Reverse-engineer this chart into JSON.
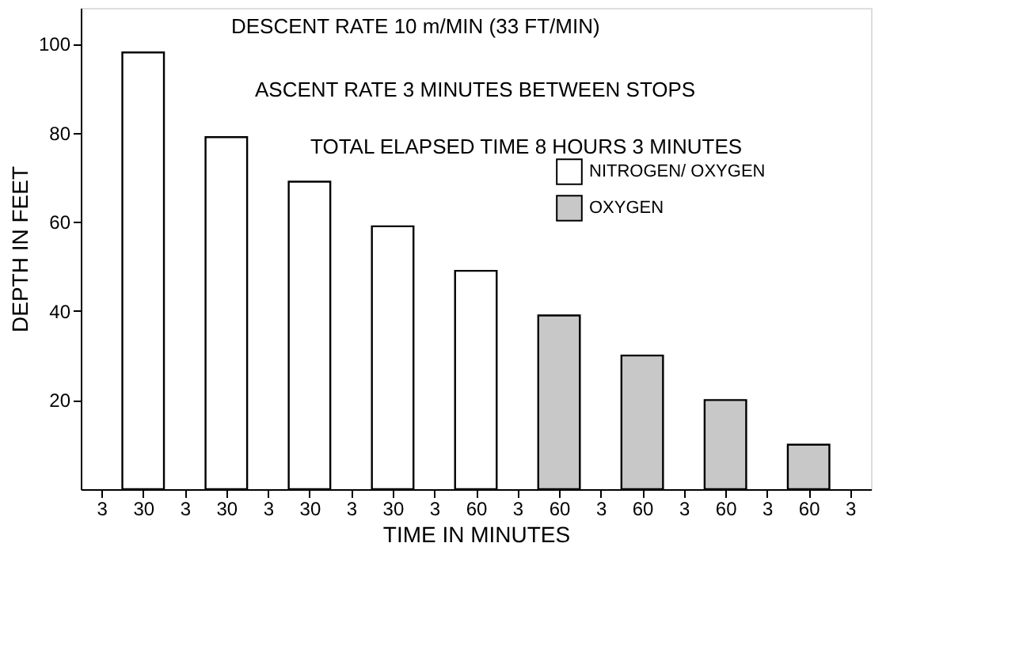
{
  "chart_data": {
    "type": "bar",
    "xlabel": "TIME IN MINUTES",
    "ylabel": "DEPTH IN FEET",
    "categories": [
      "3",
      "30",
      "3",
      "30",
      "3",
      "30",
      "3",
      "30",
      "3",
      "60",
      "3",
      "60",
      "3",
      "60",
      "3",
      "60",
      "3",
      "60",
      "3"
    ],
    "series": [
      {
        "name": "NITROGEN/ OXYGEN",
        "color": "#ffffff",
        "values": [
          null,
          98,
          null,
          79,
          null,
          69,
          null,
          59,
          null,
          49,
          null,
          null,
          null,
          null,
          null,
          null,
          null,
          null,
          null
        ]
      },
      {
        "name": "OXYGEN",
        "color": "#c8c8c8",
        "values": [
          null,
          null,
          null,
          null,
          null,
          null,
          null,
          null,
          null,
          null,
          null,
          39,
          null,
          30,
          null,
          20,
          null,
          10,
          null
        ]
      }
    ],
    "ylim": [
      0,
      108
    ],
    "yticks": [
      20,
      40,
      60,
      80,
      100
    ],
    "grid": false,
    "legend": "top right",
    "annotations": [
      "DESCENT RATE 10 m/MIN (33 FT/MIN)",
      "ASCENT RATE 3 MINUTES BETWEEN STOPS",
      "TOTAL ELAPSED TIME 8 HOURS 3 MINUTES"
    ]
  }
}
